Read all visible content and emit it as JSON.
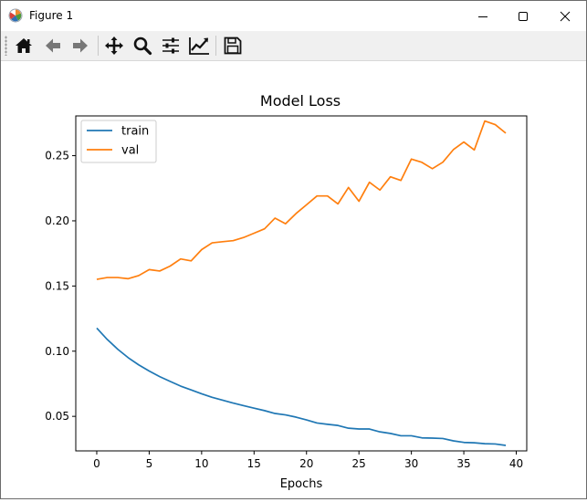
{
  "window": {
    "title": "Figure 1",
    "minimize_icon": "minimize-icon",
    "maximize_icon": "maximize-icon",
    "close_icon": "close-icon"
  },
  "toolbar": {
    "buttons": [
      {
        "name": "home",
        "icon": "home-icon"
      },
      {
        "name": "back",
        "icon": "arrow-left-icon"
      },
      {
        "name": "forward",
        "icon": "arrow-right-icon"
      },
      {
        "name": "pan",
        "icon": "move-icon"
      },
      {
        "name": "zoom",
        "icon": "magnifier-icon"
      },
      {
        "name": "configure-subplots",
        "icon": "sliders-icon"
      },
      {
        "name": "edit-axis",
        "icon": "line-chart-icon"
      },
      {
        "name": "save",
        "icon": "floppy-disk-icon"
      }
    ]
  },
  "chart_data": {
    "type": "line",
    "title": "Model Loss",
    "xlabel": "Epochs",
    "ylabel": "",
    "xlim": [
      -2,
      41
    ],
    "ylim": [
      0.0235,
      0.2805
    ],
    "x_ticks": [
      0,
      5,
      10,
      15,
      20,
      25,
      30,
      35,
      40
    ],
    "x_tick_labels": [
      "0",
      "5",
      "10",
      "15",
      "20",
      "25",
      "30",
      "35",
      "40"
    ],
    "y_ticks": [
      0.05,
      0.1,
      0.15,
      0.2,
      0.25
    ],
    "y_tick_labels": [
      "0.05",
      "0.10",
      "0.15",
      "0.20",
      "0.25"
    ],
    "grid": false,
    "legend_position": "top-left",
    "x": [
      0,
      1,
      2,
      3,
      4,
      5,
      6,
      7,
      8,
      9,
      10,
      11,
      12,
      13,
      14,
      15,
      16,
      17,
      18,
      19,
      20,
      21,
      22,
      23,
      24,
      25,
      26,
      27,
      28,
      29,
      30,
      31,
      32,
      33,
      34,
      35,
      36,
      37,
      38,
      39
    ],
    "series": [
      {
        "name": "train",
        "color": "#1f77b4",
        "values": [
          0.1177,
          0.109,
          0.1015,
          0.095,
          0.0895,
          0.0848,
          0.0805,
          0.0768,
          0.0732,
          0.0703,
          0.0673,
          0.0646,
          0.0624,
          0.0602,
          0.0582,
          0.0563,
          0.0544,
          0.0522,
          0.0511,
          0.0494,
          0.0473,
          0.0449,
          0.0439,
          0.043,
          0.0409,
          0.0403,
          0.0403,
          0.0381,
          0.0369,
          0.0351,
          0.0351,
          0.0335,
          0.0333,
          0.033,
          0.0312,
          0.03,
          0.0297,
          0.029,
          0.0288,
          0.0277
        ]
      },
      {
        "name": "val",
        "color": "#ff7f0e",
        "values": [
          0.1551,
          0.1565,
          0.1565,
          0.1556,
          0.158,
          0.1626,
          0.1615,
          0.1653,
          0.1708,
          0.1693,
          0.1779,
          0.1831,
          0.184,
          0.1848,
          0.1872,
          0.1905,
          0.1939,
          0.2021,
          0.1978,
          0.2056,
          0.2123,
          0.2191,
          0.2191,
          0.213,
          0.2256,
          0.215,
          0.2296,
          0.2236,
          0.2338,
          0.231,
          0.2474,
          0.2449,
          0.24,
          0.245,
          0.2546,
          0.2605,
          0.2544,
          0.2766,
          0.2738,
          0.2673
        ]
      }
    ]
  }
}
